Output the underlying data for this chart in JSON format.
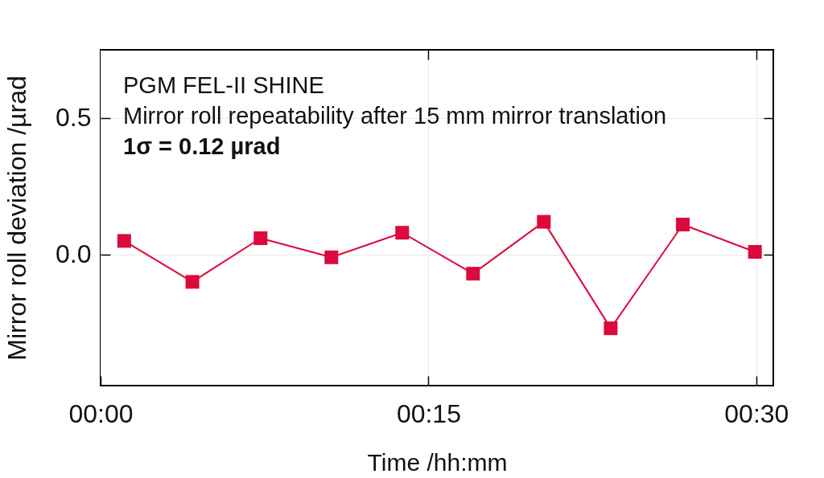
{
  "chart_data": {
    "type": "line",
    "xlabel": "Time /hh:mm",
    "ylabel": "Mirror roll deviation /µrad",
    "annotations": [
      "PGM FEL-II SHINE",
      "Mirror roll repeatability after 15 mm mirror translation",
      "1σ = 0.12 µrad"
    ],
    "x": [
      0.018,
      0.07,
      0.122,
      0.176,
      0.23,
      0.284,
      0.338,
      0.389,
      0.444,
      0.499
    ],
    "values": [
      0.05,
      -0.1,
      0.06,
      -0.01,
      0.08,
      -0.07,
      0.12,
      -0.27,
      0.11,
      0.01
    ],
    "color": "#dc0a3c",
    "xlim": [
      0,
      0.513
    ],
    "xticks": [
      {
        "value": 0,
        "label": "00:00"
      },
      {
        "value": 0.25,
        "label": "00:15"
      },
      {
        "value": 0.5,
        "label": "00:30"
      }
    ],
    "ylim": [
      -0.48,
      0.75
    ],
    "yticks": [
      {
        "value": 0,
        "label": "0.0"
      },
      0.5
    ],
    "grid": true,
    "marker": "square",
    "line_style": "solid"
  }
}
